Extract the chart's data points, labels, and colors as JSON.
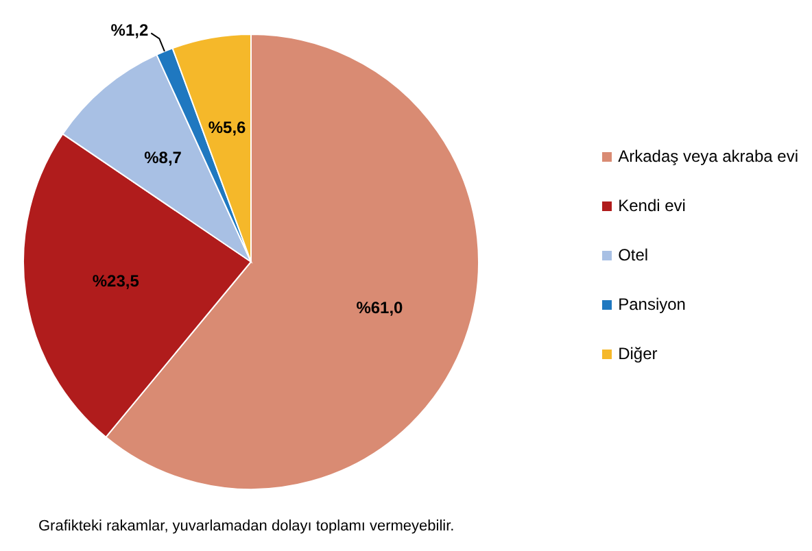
{
  "chart_data": {
    "type": "pie",
    "categories": [
      "Arkadaş veya akraba evi",
      "Kendi evi",
      "Otel",
      "Pansiyon",
      "Diğer"
    ],
    "values": [
      61.0,
      23.5,
      8.7,
      1.2,
      5.6
    ],
    "colors": [
      "#d98b73",
      "#b01c1c",
      "#a8c0e4",
      "#1f78c0",
      "#f5b82a"
    ],
    "value_labels": [
      "%61,0",
      "%23,5",
      "%8,7",
      "%1,2",
      "%5,6"
    ],
    "legend": "right",
    "annotations": [
      "Grafikteki rakamlar, yuvarlamadan dolayı toplamı vermeyebilir."
    ]
  }
}
